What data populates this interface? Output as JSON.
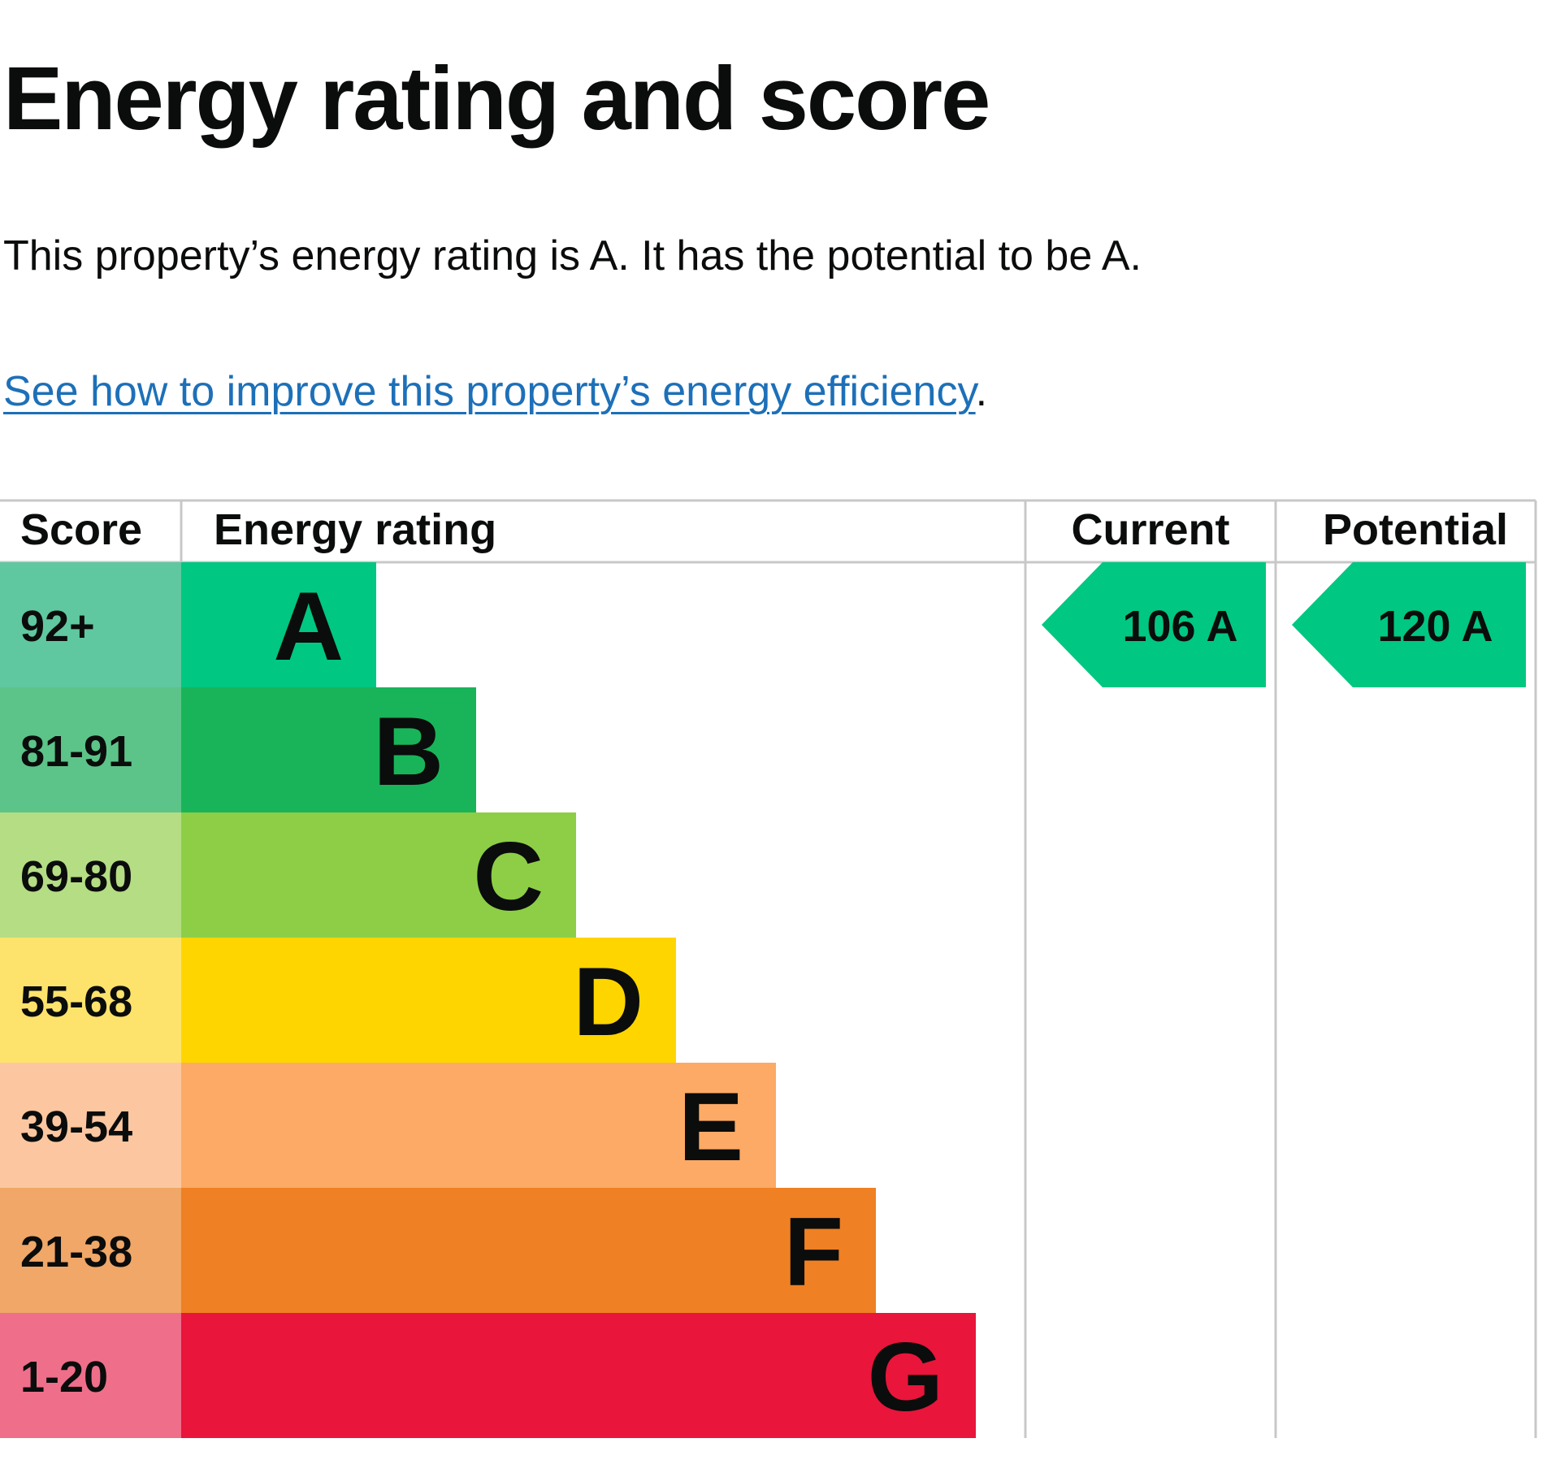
{
  "title": "Energy rating and score",
  "summary": "This property’s energy rating is A. It has the potential to be A.",
  "improve_link": {
    "text": "See how to improve this property’s energy efficiency",
    "suffix": "."
  },
  "chart_data": {
    "type": "bar",
    "title": "",
    "headers": {
      "score": "Score",
      "rating": "Energy rating",
      "current": "Current",
      "potential": "Potential"
    },
    "bands": [
      {
        "letter": "A",
        "score_range": "92+",
        "color": "#00c781",
        "score_color": "#5fc8a0"
      },
      {
        "letter": "B",
        "score_range": "81-91",
        "color": "#19b459",
        "score_color": "#5cc488"
      },
      {
        "letter": "C",
        "score_range": "69-80",
        "color": "#8dce46",
        "score_color": "#b4dd84"
      },
      {
        "letter": "D",
        "score_range": "55-68",
        "color": "#ffd500",
        "score_color": "#fde36b"
      },
      {
        "letter": "E",
        "score_range": "39-54",
        "color": "#fcaa65",
        "score_color": "#fcc7a0"
      },
      {
        "letter": "F",
        "score_range": "21-38",
        "color": "#ef8023",
        "score_color": "#f0a767"
      },
      {
        "letter": "G",
        "score_range": "1-20",
        "color": "#e9153b",
        "score_color": "#ef6f8a"
      }
    ],
    "current": {
      "score": 106,
      "rating": "A",
      "label": "106  A",
      "color": "#00c781"
    },
    "potential": {
      "score": 120,
      "rating": "A",
      "label": "120  A",
      "color": "#00c781"
    }
  }
}
